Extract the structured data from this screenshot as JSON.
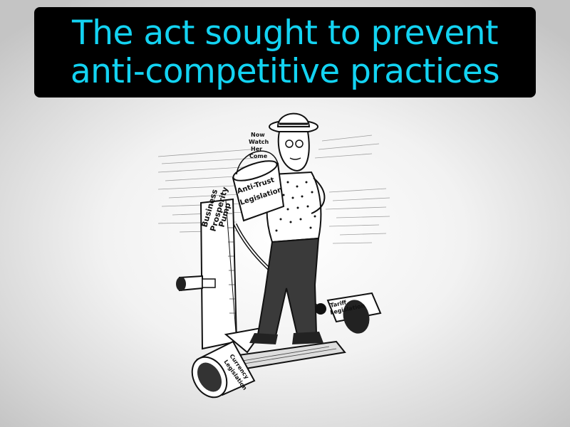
{
  "banner": {
    "line1": "The act sought to prevent",
    "line2": "anti-competitive practices"
  },
  "cartoon": {
    "caption_bubble": [
      "Now",
      "Watch",
      "Her",
      "Come"
    ],
    "bucket_label": [
      "Anti-Trust",
      "Legislation"
    ],
    "pump_label": [
      "Business",
      "Prosperity",
      "Pump"
    ],
    "bucket_right_label": [
      "Tariff",
      "Legislation"
    ],
    "bucket_left_label": [
      "Currency",
      "Legislation"
    ]
  }
}
